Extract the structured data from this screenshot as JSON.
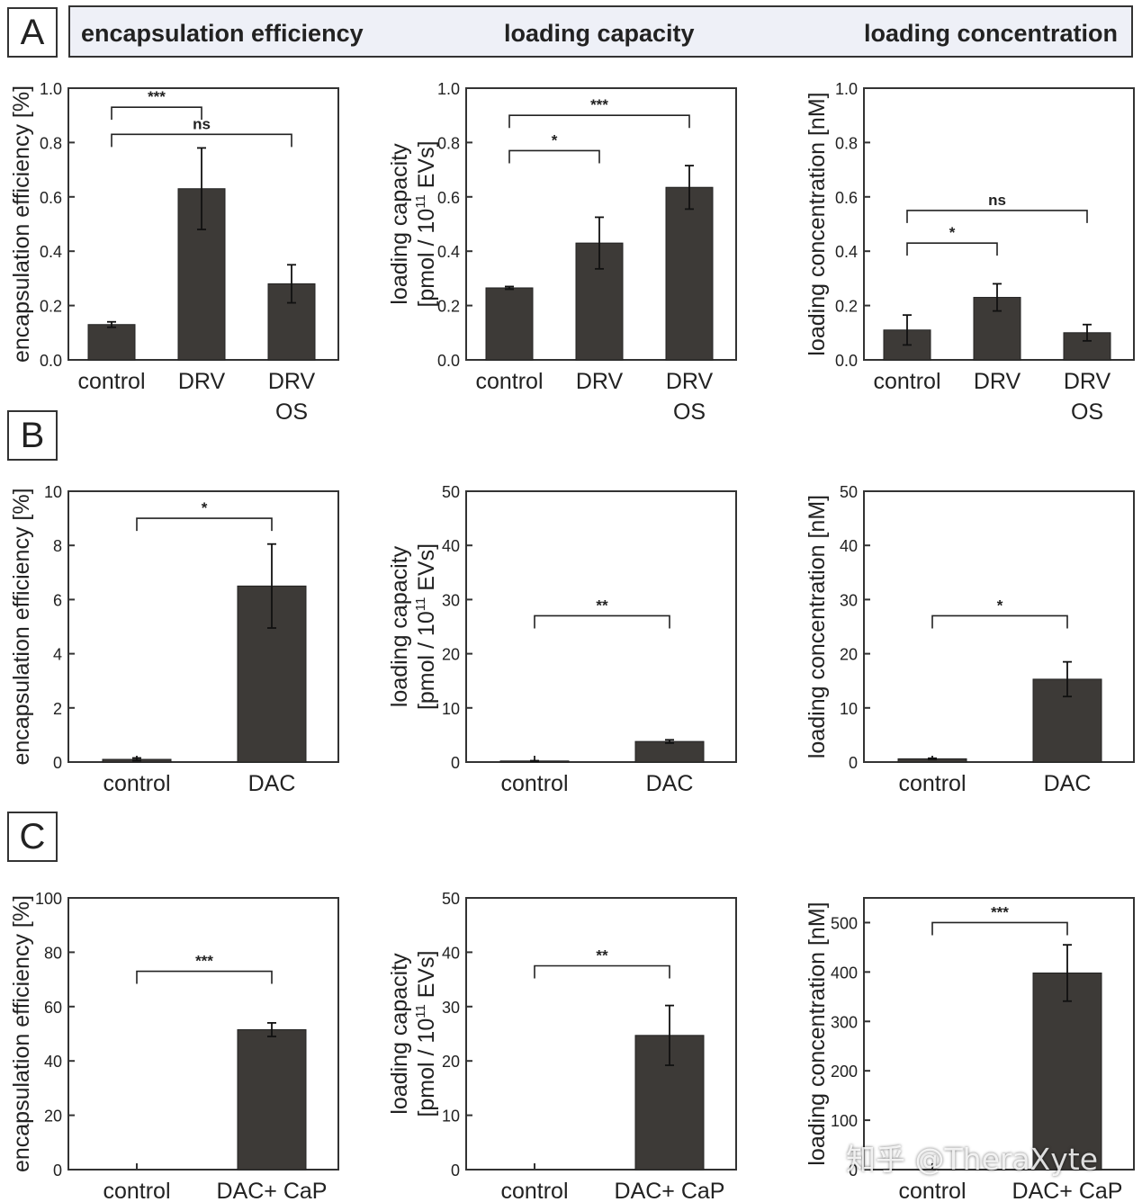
{
  "colors": {
    "bar": "#3d3a37",
    "axis": "#333333",
    "text": "#222222",
    "header_bg": "#eef0f7"
  },
  "panels": [
    {
      "letter": "A"
    },
    {
      "letter": "B"
    },
    {
      "letter": "C"
    }
  ],
  "header": {
    "col1": "encapsulation efficiency",
    "col2": "loading capacity",
    "col3": "loading concentration"
  },
  "watermark": "知乎 @TheraXyte",
  "chart_data": [
    {
      "type": "bar",
      "panel": "A",
      "ylabel": [
        "encapsulation efficiency [%]"
      ],
      "ylim": [
        0,
        1.0
      ],
      "yticks": [
        "0.0",
        "0.2",
        "0.4",
        "0.6",
        "0.8",
        "1.0"
      ],
      "categories": [
        [
          "control"
        ],
        [
          "DRV"
        ],
        [
          "DRV",
          "OS"
        ]
      ],
      "values": [
        0.13,
        0.63,
        0.28
      ],
      "errors": [
        0.01,
        0.15,
        0.07
      ],
      "brackets": [
        {
          "from": 0,
          "to": 1,
          "label": "***",
          "y": 0.93
        },
        {
          "from": 0,
          "to": 2,
          "label": "ns",
          "y": 0.83
        }
      ]
    },
    {
      "type": "bar",
      "panel": "A",
      "ylabel": [
        "loading capacity",
        "[pmol / 10",
        "11",
        " EVs]"
      ],
      "ylim": [
        0,
        1.0
      ],
      "yticks": [
        "0.0",
        "0.2",
        "0.4",
        "0.6",
        "0.8",
        "1.0"
      ],
      "categories": [
        [
          "control"
        ],
        [
          "DRV"
        ],
        [
          "DRV",
          "OS"
        ]
      ],
      "values": [
        0.265,
        0.43,
        0.635
      ],
      "errors": [
        0.005,
        0.095,
        0.08
      ],
      "brackets": [
        {
          "from": 0,
          "to": 2,
          "label": "***",
          "y": 0.9
        },
        {
          "from": 0,
          "to": 1,
          "label": "*",
          "y": 0.77
        }
      ]
    },
    {
      "type": "bar",
      "panel": "A",
      "ylabel": [
        "loading concentration [nM]"
      ],
      "ylim": [
        0,
        1.0
      ],
      "yticks": [
        "0.0",
        "0.2",
        "0.4",
        "0.6",
        "0.8",
        "1.0"
      ],
      "categories": [
        [
          "control"
        ],
        [
          "DRV"
        ],
        [
          "DRV",
          "OS"
        ]
      ],
      "values": [
        0.11,
        0.23,
        0.1
      ],
      "errors": [
        0.055,
        0.05,
        0.03
      ],
      "brackets": [
        {
          "from": 0,
          "to": 2,
          "label": "ns",
          "y": 0.55
        },
        {
          "from": 0,
          "to": 1,
          "label": "*",
          "y": 0.43
        }
      ]
    },
    {
      "type": "bar",
      "panel": "B",
      "ylabel": [
        "encapsulation efficiency [%]"
      ],
      "ylim": [
        0,
        10
      ],
      "yticks": [
        "0",
        "2",
        "4",
        "6",
        "8",
        "10"
      ],
      "categories": [
        [
          "control"
        ],
        [
          "DAC"
        ]
      ],
      "values": [
        0.1,
        6.5
      ],
      "errors": [
        0.05,
        1.55
      ],
      "brackets": [
        {
          "from": 0,
          "to": 1,
          "label": "*",
          "y": 9.0
        }
      ]
    },
    {
      "type": "bar",
      "panel": "B",
      "ylabel": [
        "loading capacity",
        "[pmol / 10",
        "11",
        " EVs]"
      ],
      "ylim": [
        0,
        50
      ],
      "yticks": [
        "0",
        "10",
        "20",
        "30",
        "40",
        "50"
      ],
      "categories": [
        [
          "control"
        ],
        [
          "DAC"
        ]
      ],
      "values": [
        0.2,
        3.8
      ],
      "errors": [
        0.05,
        0.3
      ],
      "brackets": [
        {
          "from": 0,
          "to": 1,
          "label": "**",
          "y": 27
        }
      ]
    },
    {
      "type": "bar",
      "panel": "B",
      "ylabel": [
        "loading concentration [nM]"
      ],
      "ylim": [
        0,
        50
      ],
      "yticks": [
        "0",
        "10",
        "20",
        "30",
        "40",
        "50"
      ],
      "categories": [
        [
          "control"
        ],
        [
          "DAC"
        ]
      ],
      "values": [
        0.6,
        15.3
      ],
      "errors": [
        0.1,
        3.2
      ],
      "brackets": [
        {
          "from": 0,
          "to": 1,
          "label": "*",
          "y": 27
        }
      ]
    },
    {
      "type": "bar",
      "panel": "C",
      "ylabel": [
        "encapsulation efficiency [%]"
      ],
      "ylim": [
        0,
        100
      ],
      "yticks": [
        "0",
        "20",
        "40",
        "60",
        "80",
        "100"
      ],
      "categories": [
        [
          "control"
        ],
        [
          "DAC+ CaP"
        ]
      ],
      "values": [
        0,
        51.5
      ],
      "errors": [
        0,
        2.5
      ],
      "brackets": [
        {
          "from": 0,
          "to": 1,
          "label": "***",
          "y": 73
        }
      ]
    },
    {
      "type": "bar",
      "panel": "C",
      "ylabel": [
        "loading capacity",
        "[pmol / 10",
        "11",
        " EVs]"
      ],
      "ylim": [
        0,
        50
      ],
      "yticks": [
        "0",
        "10",
        "20",
        "30",
        "40",
        "50"
      ],
      "categories": [
        [
          "control"
        ],
        [
          "DAC+ CaP"
        ]
      ],
      "values": [
        0,
        24.7
      ],
      "errors": [
        0,
        5.5
      ],
      "brackets": [
        {
          "from": 0,
          "to": 1,
          "label": "**",
          "y": 37.5
        }
      ]
    },
    {
      "type": "bar",
      "panel": "C",
      "ylabel": [
        "loading concentration [nM]"
      ],
      "ylim": [
        0,
        550
      ],
      "yticks": [
        "0",
        "100",
        "200",
        "300",
        "400",
        "500"
      ],
      "ytick_values": [
        0,
        100,
        200,
        300,
        400,
        500
      ],
      "categories": [
        [
          "control"
        ],
        [
          "DAC+ CaP"
        ]
      ],
      "values": [
        0,
        398
      ],
      "errors": [
        0,
        57
      ],
      "brackets": [
        {
          "from": 0,
          "to": 1,
          "label": "***",
          "y": 500
        }
      ]
    }
  ]
}
